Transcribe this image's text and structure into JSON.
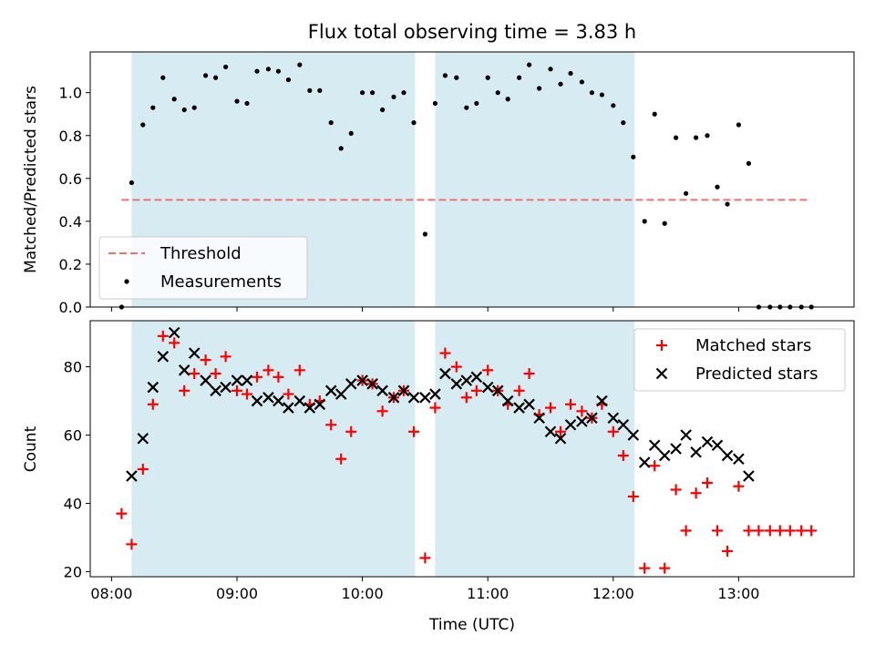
{
  "chart_data": {
    "title": "Flux total observing time = 3.83 h",
    "xlabel": "Time (UTC)",
    "x_unit": "hours UTC",
    "x_ticks": [
      {
        "label": "08:00",
        "value": 8.0
      },
      {
        "label": "09:00",
        "value": 9.0
      },
      {
        "label": "10:00",
        "value": 10.0
      },
      {
        "label": "11:00",
        "value": 11.0
      },
      {
        "label": "12:00",
        "value": 12.0
      },
      {
        "label": "13:00",
        "value": 13.0
      }
    ],
    "xlim": [
      7.83,
      13.92
    ],
    "shaded_intervals": [
      [
        8.16,
        10.42
      ],
      [
        10.58,
        12.17
      ]
    ],
    "shade_color": "#add8e6",
    "panels": [
      {
        "id": "ratio",
        "type": "scatter",
        "ylabel": "Matched/Predicted stars",
        "ylim": [
          0.0,
          1.19
        ],
        "y_ticks": [
          "0.0",
          "0.2",
          "0.4",
          "0.6",
          "0.8",
          "1.0"
        ],
        "legend": {
          "position": "lower left",
          "entries": [
            "Threshold",
            "Measurements"
          ]
        },
        "series": [
          {
            "name": "Threshold",
            "style": "dashed-line",
            "color": "#f07070",
            "x": [
              8.08,
              13.55
            ],
            "y": [
              0.5,
              0.5
            ]
          },
          {
            "name": "Measurements",
            "style": "dot",
            "color": "#000000",
            "x": [
              8.08,
              8.16,
              8.25,
              8.33,
              8.41,
              8.5,
              8.58,
              8.66,
              8.75,
              8.83,
              8.91,
              9.0,
              9.08,
              9.16,
              9.25,
              9.33,
              9.41,
              9.5,
              9.58,
              9.66,
              9.75,
              9.83,
              9.91,
              10.0,
              10.08,
              10.16,
              10.25,
              10.33,
              10.41,
              10.5,
              10.58,
              10.66,
              10.75,
              10.83,
              10.91,
              11.0,
              11.08,
              11.16,
              11.25,
              11.33,
              11.41,
              11.5,
              11.58,
              11.66,
              11.75,
              11.83,
              11.91,
              12.0,
              12.08,
              12.16,
              12.25,
              12.33,
              12.41,
              12.5,
              12.58,
              12.66,
              12.75,
              12.83,
              12.91,
              13.0,
              13.08,
              13.16,
              13.25,
              13.33,
              13.41,
              13.5,
              13.58
            ],
            "y": [
              0.0,
              0.58,
              0.85,
              0.93,
              1.07,
              0.97,
              0.92,
              0.93,
              1.08,
              1.07,
              1.12,
              0.96,
              0.95,
              1.1,
              1.11,
              1.1,
              1.06,
              1.13,
              1.01,
              1.01,
              0.86,
              0.74,
              0.81,
              1.0,
              1.0,
              0.92,
              0.98,
              1.0,
              0.86,
              0.34,
              0.95,
              1.08,
              1.07,
              0.93,
              0.95,
              1.07,
              1.0,
              0.97,
              1.07,
              1.13,
              1.02,
              1.11,
              1.04,
              1.09,
              1.05,
              1.0,
              0.99,
              0.94,
              0.86,
              0.7,
              0.4,
              0.9,
              0.39,
              0.79,
              0.53,
              0.79,
              0.8,
              0.56,
              0.48,
              0.85,
              0.67,
              0.0,
              0.0,
              0.0,
              0.0,
              0.0,
              0.0
            ]
          }
        ]
      },
      {
        "id": "counts",
        "type": "scatter",
        "ylabel": "Count",
        "ylim": [
          18.5,
          93.5
        ],
        "y_ticks": [
          "20",
          "40",
          "60",
          "80"
        ],
        "legend": {
          "position": "upper right",
          "entries": [
            "Matched stars",
            "Predicted stars"
          ]
        },
        "series": [
          {
            "name": "Matched stars",
            "style": "plus",
            "color": "#ff0000",
            "x": [
              8.08,
              8.16,
              8.25,
              8.33,
              8.41,
              8.5,
              8.58,
              8.66,
              8.75,
              8.83,
              8.91,
              9.0,
              9.08,
              9.16,
              9.25,
              9.33,
              9.41,
              9.5,
              9.58,
              9.66,
              9.75,
              9.83,
              9.91,
              10.0,
              10.08,
              10.16,
              10.25,
              10.33,
              10.41,
              10.5,
              10.58,
              10.66,
              10.75,
              10.83,
              10.91,
              11.0,
              11.08,
              11.16,
              11.25,
              11.33,
              11.41,
              11.5,
              11.58,
              11.66,
              11.75,
              11.83,
              11.91,
              12.0,
              12.08,
              12.16,
              12.25,
              12.33,
              12.41,
              12.5,
              12.58,
              12.66,
              12.75,
              12.83,
              12.91,
              13.0,
              13.08,
              13.16,
              13.25,
              13.33,
              13.41,
              13.5,
              13.58
            ],
            "y": [
              37,
              28,
              50,
              69,
              89,
              87,
              73,
              78,
              82,
              78,
              83,
              73,
              72,
              77,
              79,
              77,
              72,
              79,
              69,
              70,
              63,
              53,
              61,
              76,
              75,
              67,
              71,
              73,
              61,
              24,
              68,
              84,
              80,
              71,
              73,
              79,
              73,
              69,
              73,
              78,
              66,
              68,
              61,
              69,
              67,
              65,
              69,
              61,
              54,
              42,
              21,
              51,
              21,
              44,
              32,
              43,
              46,
              32,
              26,
              45,
              32,
              32,
              32,
              32,
              32,
              32,
              32
            ]
          },
          {
            "name": "Predicted stars",
            "style": "x",
            "color": "#000000",
            "x": [
              8.16,
              8.25,
              8.33,
              8.41,
              8.5,
              8.58,
              8.66,
              8.75,
              8.83,
              8.91,
              9.0,
              9.08,
              9.16,
              9.25,
              9.33,
              9.41,
              9.5,
              9.58,
              9.66,
              9.75,
              9.83,
              9.91,
              10.0,
              10.08,
              10.16,
              10.25,
              10.33,
              10.41,
              10.5,
              10.58,
              10.66,
              10.75,
              10.83,
              10.91,
              11.0,
              11.08,
              11.16,
              11.25,
              11.33,
              11.41,
              11.5,
              11.58,
              11.66,
              11.75,
              11.83,
              11.91,
              12.0,
              12.08,
              12.16,
              12.25,
              12.33,
              12.41,
              12.5,
              12.58,
              12.66,
              12.75,
              12.83,
              12.91,
              13.0,
              13.08
            ],
            "y": [
              48,
              59,
              74,
              83,
              90,
              79,
              84,
              76,
              73,
              74,
              76,
              76,
              70,
              71,
              70,
              68,
              70,
              68,
              69,
              73,
              72,
              75,
              76,
              75,
              73,
              71,
              73,
              71,
              71,
              72,
              78,
              75,
              76,
              77,
              74,
              73,
              70,
              68,
              69,
              65,
              61,
              59,
              63,
              64,
              65,
              70,
              65,
              63,
              60,
              52,
              57,
              54,
              56,
              60,
              55,
              58,
              57,
              54,
              53,
              48
            ]
          }
        ]
      }
    ]
  }
}
